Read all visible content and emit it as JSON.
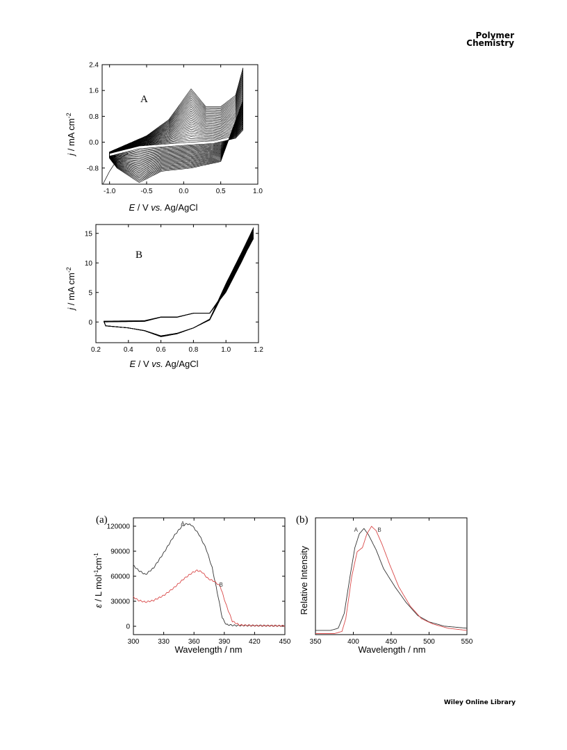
{
  "header": {
    "journal_line1": "Polymer",
    "journal_line2": "Chemistry"
  },
  "footer": {
    "text": "Wiley Online Library"
  },
  "figure_top": {
    "panelA_label": "A",
    "panelB_label": "B",
    "ylabel_j": "j",
    "ylabel_rest": " / mA cm",
    "ylabel_sup": "-2",
    "xlabel_E": "E",
    "xlabel_mid": " / V ",
    "xlabel_vs": "vs.",
    "xlabel_end": " Ag/AgCl"
  },
  "figure_bottom": {
    "panel_a_tag": "(a)",
    "panel_b_tag": "(b)",
    "a_ylabel_eps": "ε",
    "a_ylabel_main": " / L mol",
    "a_ylabel_sup1": "-1",
    "a_ylabel_mid": "cm",
    "a_ylabel_sup2": "-1",
    "b_ylabel": "Relative Intensity",
    "xlabel": "Wavelength / nm",
    "curveA": "A",
    "curveB": "B"
  },
  "chart_data": [
    {
      "type": "line",
      "panel": "A",
      "xlabel": "E / V vs. Ag/AgCl",
      "ylabel": "j / mA cm-2",
      "xlim": [
        -1.1,
        1.0
      ],
      "ylim": [
        -1.3,
        2.4
      ],
      "xticks": [
        "-1.0",
        "-0.5",
        "0.0",
        "0.5",
        "1.0"
      ],
      "yticks": [
        "-0.8",
        "0.0",
        "0.8",
        "1.6",
        "2.4"
      ],
      "cycles": 30,
      "first_cycle_anodic": {
        "x": [
          -1.0,
          -0.6,
          -0.2,
          0.1,
          0.4,
          0.7,
          0.8
        ],
        "y": [
          -0.35,
          -0.12,
          -0.05,
          0.0,
          0.04,
          0.2,
          0.45
        ]
      },
      "last_cycle_anodic": {
        "x": [
          -1.0,
          -0.5,
          -0.2,
          0.1,
          0.3,
          0.5,
          0.7,
          0.8
        ],
        "y": [
          -0.3,
          0.2,
          0.7,
          1.65,
          1.1,
          1.1,
          1.45,
          2.3
        ]
      },
      "last_cycle_cathodic": {
        "x": [
          0.8,
          0.5,
          0.1,
          -0.3,
          -0.6,
          -0.9,
          -1.0
        ],
        "y": [
          1.3,
          -0.6,
          -0.8,
          -0.9,
          -1.25,
          -0.8,
          -0.5
        ]
      },
      "color": "#000000"
    },
    {
      "type": "line",
      "panel": "B",
      "xlabel": "E / V vs. Ag/AgCl",
      "ylabel": "j / mA cm-2",
      "xlim": [
        0.2,
        1.2
      ],
      "ylim": [
        -3.5,
        16.5
      ],
      "xticks": [
        "0.2",
        "0.4",
        "0.6",
        "0.8",
        "1.0",
        "1.2"
      ],
      "yticks": [
        "0",
        "5",
        "10",
        "15"
      ],
      "anodic": {
        "x": [
          0.25,
          0.5,
          0.6,
          0.7,
          0.8,
          0.9,
          1.0,
          1.1,
          1.17
        ],
        "y": [
          0.0,
          0.1,
          0.8,
          0.8,
          1.5,
          1.5,
          5.5,
          11.5,
          16.0
        ]
      },
      "cathodic": {
        "x": [
          1.17,
          1.1,
          1.0,
          0.9,
          0.8,
          0.7,
          0.6,
          0.5,
          0.4,
          0.25
        ],
        "y": [
          16.0,
          12.0,
          6.5,
          0.5,
          -1.0,
          -2.0,
          -2.5,
          -1.5,
          -1.0,
          -0.6
        ]
      },
      "color": "#000000"
    },
    {
      "type": "line",
      "panel": "(a)",
      "xlabel": "Wavelength / nm",
      "ylabel": "ε / L mol-1 cm-1",
      "xlim": [
        300,
        450
      ],
      "ylim": [
        -10000,
        130000
      ],
      "xticks": [
        "300",
        "330",
        "360",
        "390",
        "420",
        "450"
      ],
      "yticks": [
        "0",
        "30000",
        "60000",
        "90000",
        "120000"
      ],
      "series": [
        {
          "name": "A",
          "color": "#333333",
          "x": [
            300,
            305,
            312,
            320,
            330,
            340,
            348,
            353,
            358,
            365,
            372,
            378,
            384,
            388,
            392,
            400,
            420,
            450
          ],
          "y": [
            73000,
            67000,
            62000,
            70000,
            88000,
            108000,
            120000,
            123000,
            121000,
            110000,
            93000,
            70000,
            35000,
            10000,
            2000,
            1000,
            800,
            500
          ]
        },
        {
          "name": "B",
          "color": "#d94848",
          "x": [
            300,
            305,
            312,
            320,
            330,
            340,
            350,
            358,
            363,
            368,
            374,
            380,
            386,
            392,
            398,
            405,
            420,
            450
          ],
          "y": [
            35000,
            31000,
            29000,
            31000,
            37000,
            46000,
            57000,
            64000,
            67000,
            65000,
            57000,
            54000,
            48000,
            25000,
            6000,
            1500,
            800,
            500
          ]
        }
      ]
    },
    {
      "type": "line",
      "panel": "(b)",
      "xlabel": "Wavelength / nm",
      "ylabel": "Relative Intensity",
      "xlim": [
        350,
        550
      ],
      "ylim": [
        0,
        1.1
      ],
      "xticks": [
        "350",
        "400",
        "450",
        "500",
        "550"
      ],
      "series": [
        {
          "name": "A",
          "color": "#333333",
          "x": [
            350,
            370,
            380,
            388,
            395,
            402,
            408,
            414,
            420,
            430,
            440,
            455,
            470,
            485,
            500,
            520,
            550
          ],
          "y": [
            0.04,
            0.04,
            0.06,
            0.2,
            0.52,
            0.82,
            0.95,
            1.0,
            0.94,
            0.8,
            0.62,
            0.45,
            0.3,
            0.18,
            0.12,
            0.08,
            0.06
          ]
        },
        {
          "name": "B",
          "color": "#d94848",
          "x": [
            350,
            375,
            385,
            390,
            398,
            405,
            412,
            418,
            424,
            430,
            438,
            448,
            460,
            475,
            490,
            505,
            525,
            550
          ],
          "y": [
            0.01,
            0.01,
            0.03,
            0.15,
            0.55,
            0.78,
            0.82,
            0.95,
            1.02,
            0.98,
            0.85,
            0.66,
            0.45,
            0.27,
            0.15,
            0.1,
            0.06,
            0.04
          ]
        }
      ]
    }
  ]
}
